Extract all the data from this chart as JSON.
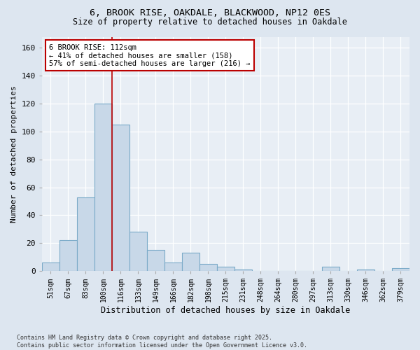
{
  "title_line1": "6, BROOK RISE, OAKDALE, BLACKWOOD, NP12 0ES",
  "title_line2": "Size of property relative to detached houses in Oakdale",
  "xlabel": "Distribution of detached houses by size in Oakdale",
  "ylabel": "Number of detached properties",
  "categories": [
    "51sqm",
    "67sqm",
    "83sqm",
    "100sqm",
    "116sqm",
    "133sqm",
    "149sqm",
    "166sqm",
    "182sqm",
    "198sqm",
    "215sqm",
    "231sqm",
    "248sqm",
    "264sqm",
    "280sqm",
    "297sqm",
    "313sqm",
    "330sqm",
    "346sqm",
    "362sqm",
    "379sqm"
  ],
  "values": [
    6,
    22,
    53,
    120,
    105,
    28,
    15,
    6,
    13,
    5,
    3,
    1,
    0,
    0,
    0,
    0,
    3,
    0,
    1,
    0,
    2
  ],
  "bar_color": "#c8d8e8",
  "bar_edge_color": "#7aaac8",
  "vline_x": 3.5,
  "vline_color": "#bb0000",
  "annotation_text": "6 BROOK RISE: 112sqm\n← 41% of detached houses are smaller (158)\n57% of semi-detached houses are larger (216) →",
  "annotation_box_color": "white",
  "annotation_box_edge": "#bb0000",
  "ylim": [
    0,
    168
  ],
  "yticks": [
    0,
    20,
    40,
    60,
    80,
    100,
    120,
    140,
    160
  ],
  "footnote": "Contains HM Land Registry data © Crown copyright and database right 2025.\nContains public sector information licensed under the Open Government Licence v3.0.",
  "bg_color": "#dde6f0",
  "plot_bg_color": "#e8eef5"
}
